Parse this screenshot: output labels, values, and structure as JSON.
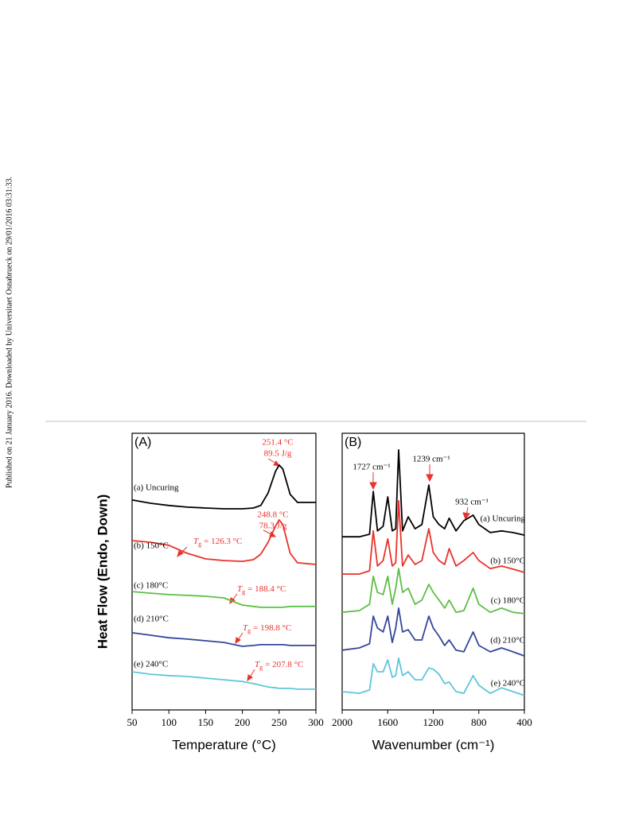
{
  "page": {
    "side_note": "Published on 21 January 2016. Downloaded by Universitaet Osnabrueck on 29/01/2016 03:31:33."
  },
  "chart_data": [
    {
      "type": "line",
      "panel": "(A)",
      "x_label": "Temperature (°C)",
      "y_label": "Heat Flow (Endo, Down)",
      "x": [
        50,
        75,
        100,
        125,
        150,
        175,
        200,
        215,
        225,
        235,
        245,
        250,
        255,
        265,
        275,
        300
      ],
      "xlim": [
        50,
        300
      ],
      "xticks": [
        50,
        100,
        150,
        200,
        250,
        300
      ],
      "ylim": [
        0,
        100
      ],
      "series": [
        {
          "name": "(a) Uncuring",
          "color": "#000000",
          "values": [
            75.9,
            74.7,
            73.9,
            73.3,
            73.0,
            72.7,
            72.7,
            73.0,
            73.9,
            78.4,
            86.2,
            88.5,
            87.1,
            77.9,
            75.0,
            75.0
          ]
        },
        {
          "name": "(b) 150°C",
          "color": "#e8322b",
          "values": [
            61.2,
            60.6,
            59.5,
            56.6,
            54.6,
            54.0,
            53.7,
            54.3,
            56.3,
            60.6,
            66.4,
            68.7,
            67.0,
            56.6,
            53.2,
            52.6
          ]
        },
        {
          "name": "(c) 180°C",
          "color": "#5cbf45",
          "values": [
            42.8,
            42.2,
            41.7,
            41.4,
            41.1,
            40.5,
            37.9,
            37.4,
            37.1,
            37.1,
            37.1,
            37.1,
            37.1,
            37.4,
            37.4,
            37.4
          ]
        },
        {
          "name": "(d) 210°C",
          "color": "#34469c",
          "values": [
            27.9,
            27.0,
            26.1,
            25.6,
            25.0,
            24.4,
            23.0,
            23.3,
            23.6,
            23.6,
            23.6,
            23.6,
            23.6,
            23.3,
            23.3,
            23.3
          ]
        },
        {
          "name": "(e) 240°C",
          "color": "#5ec7d8",
          "values": [
            13.8,
            12.9,
            12.4,
            12.1,
            11.5,
            10.9,
            10.3,
            9.5,
            8.9,
            8.3,
            8.0,
            7.8,
            7.8,
            7.8,
            7.5,
            7.5
          ]
        }
      ],
      "annotations": [
        "251.4 °C",
        "89.5 J/g",
        "248.8 °C",
        "78.3 J/g"
      ],
      "tg_annotations": [
        {
          "symbol": "T",
          "subscript": "g",
          "text": "= 126.3 °C"
        },
        {
          "symbol": "T",
          "subscript": "g",
          "text": "= 188.4 °C"
        },
        {
          "symbol": "T",
          "subscript": "g",
          "text": "= 198.8 °C"
        },
        {
          "symbol": "T",
          "subscript": "g",
          "text": "= 207.8 °C"
        }
      ]
    },
    {
      "type": "line",
      "panel": "(B)",
      "x_label": "Wavenumber (cm⁻¹)",
      "x": [
        2000,
        1850,
        1760,
        1727,
        1690,
        1640,
        1600,
        1560,
        1530,
        1504,
        1470,
        1420,
        1360,
        1300,
        1239,
        1200,
        1150,
        1100,
        1060,
        1000,
        932,
        850,
        800,
        700,
        600,
        500,
        400
      ],
      "xlim": [
        2000,
        400
      ],
      "xticks": [
        2000,
        1600,
        1200,
        800,
        400
      ],
      "ylim": [
        0,
        100
      ],
      "series": [
        {
          "name": "(a) Uncuring",
          "color": "#000000",
          "values": [
            62.6,
            62.6,
            63.5,
            79.0,
            64.7,
            66.4,
            77.0,
            64.7,
            65.5,
            94.0,
            64.7,
            69.8,
            65.5,
            67.0,
            81.3,
            69.8,
            67.0,
            65.5,
            69.3,
            64.7,
            68.4,
            70.4,
            67.0,
            64.1,
            64.7,
            64.1,
            63.2
          ]
        },
        {
          "name": "(b) 150°C",
          "color": "#e8322b",
          "values": [
            49.1,
            49.1,
            50.3,
            64.7,
            52.0,
            54.0,
            61.8,
            52.0,
            53.2,
            75.6,
            52.0,
            56.0,
            52.6,
            54.0,
            65.5,
            56.9,
            54.0,
            52.6,
            58.3,
            52.0,
            54.0,
            56.9,
            54.0,
            51.1,
            52.0,
            50.9,
            49.7
          ]
        },
        {
          "name": "(c) 180°C",
          "color": "#5cbf45",
          "values": [
            35.3,
            35.9,
            38.2,
            48.3,
            42.5,
            41.7,
            48.3,
            38.2,
            44.0,
            51.1,
            42.5,
            44.0,
            38.2,
            39.7,
            45.4,
            42.5,
            39.7,
            36.8,
            39.7,
            35.3,
            35.9,
            44.0,
            38.2,
            35.3,
            36.8,
            35.3,
            34.8
          ]
        },
        {
          "name": "(d) 210°C",
          "color": "#34469c",
          "values": [
            21.6,
            22.4,
            23.9,
            33.9,
            29.6,
            28.2,
            33.9,
            24.4,
            29.6,
            36.8,
            28.2,
            29.0,
            25.3,
            25.3,
            33.9,
            29.6,
            26.7,
            23.3,
            25.3,
            21.6,
            21.0,
            28.2,
            23.3,
            21.0,
            22.4,
            21.0,
            19.5
          ]
        },
        {
          "name": "(e) 240°C",
          "color": "#5ec7d8",
          "values": [
            6.6,
            6.0,
            7.2,
            16.7,
            13.8,
            13.8,
            18.1,
            11.8,
            12.4,
            18.7,
            12.4,
            13.8,
            10.9,
            10.9,
            15.2,
            14.7,
            12.9,
            9.5,
            10.1,
            6.6,
            6.0,
            12.4,
            8.9,
            6.0,
            8.0,
            6.6,
            5.2
          ]
        }
      ],
      "annotations": [
        "1727 cm⁻¹",
        "1239 cm⁻¹",
        "932 cm⁻¹"
      ]
    }
  ]
}
